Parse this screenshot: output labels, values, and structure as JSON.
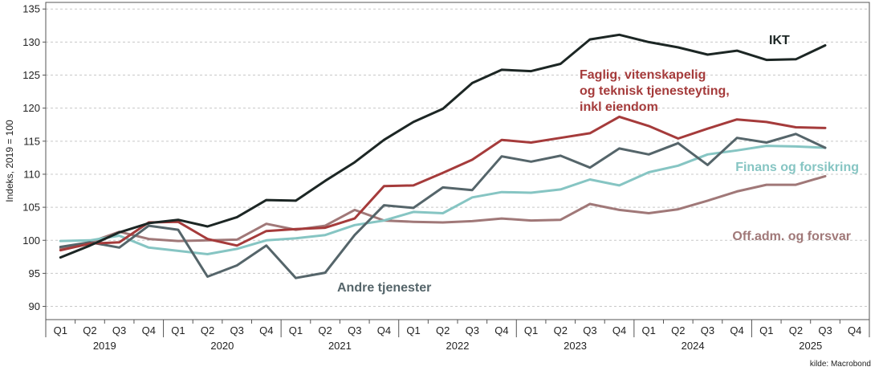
{
  "chart_data": {
    "type": "line",
    "ylabel": "Indeks, 2019 = 100",
    "ylim": [
      88,
      136
    ],
    "yticks": [
      90,
      95,
      100,
      105,
      110,
      115,
      120,
      125,
      130,
      135
    ],
    "grid": "horizontal dashed",
    "quarter_labels": [
      "Q1",
      "Q2",
      "Q3",
      "Q4",
      "Q1",
      "Q2",
      "Q3",
      "Q4",
      "Q1",
      "Q2",
      "Q3",
      "Q4",
      "Q1",
      "Q2",
      "Q3",
      "Q4",
      "Q1",
      "Q2",
      "Q3",
      "Q4",
      "Q1",
      "Q2",
      "Q3",
      "Q4",
      "Q1",
      "Q2",
      "Q3",
      "Q4"
    ],
    "years": [
      "2019",
      "2020",
      "2021",
      "2022",
      "2023",
      "2024",
      "2025"
    ],
    "source": "kilde: Macrobond",
    "series": [
      {
        "name": "Off.adm. og forsvar",
        "label_lines": [
          "Off.adm. og forsvar"
        ],
        "color": "#a07878",
        "values": [
          98.8,
          99.7,
          101.3,
          100.2,
          99.9,
          100.0,
          100.1,
          102.5,
          101.6,
          102.2,
          104.6,
          103.0,
          102.8,
          102.7,
          102.9,
          103.3,
          103.0,
          103.1,
          105.5,
          104.6,
          104.1,
          104.7,
          106.0,
          107.4,
          108.4,
          108.4,
          109.7
        ]
      },
      {
        "name": "Finans og forsikring",
        "label_lines": [
          "Finans og forsikring"
        ],
        "color": "#86c5c3",
        "values": [
          99.9,
          100.0,
          100.7,
          98.9,
          98.4,
          97.9,
          98.7,
          100.0,
          100.3,
          100.8,
          102.3,
          103.0,
          104.3,
          104.1,
          106.5,
          107.3,
          107.2,
          107.7,
          109.2,
          108.3,
          110.3,
          111.3,
          113.0,
          113.6,
          114.3,
          114.2,
          114.0
        ]
      },
      {
        "name": "Andre tjenester",
        "label_lines": [
          "Andre tjenester"
        ],
        "color": "#55656a",
        "values": [
          99.0,
          99.7,
          98.9,
          102.2,
          101.6,
          94.5,
          96.2,
          99.2,
          94.3,
          95.1,
          100.8,
          105.3,
          104.9,
          108.0,
          107.6,
          112.7,
          111.9,
          112.8,
          111.0,
          113.9,
          113.0,
          114.7,
          111.4,
          115.5,
          114.8,
          116.1,
          114.0
        ]
      },
      {
        "name": "Faglig, vitenskapelig og teknisk tjenesteyting, inkl eiendom",
        "label_lines": [
          "Faglig, vitenskapelig",
          "og teknisk tjenesteyting,",
          "inkl eiendom"
        ],
        "color": "#a53b3b",
        "values": [
          98.5,
          99.5,
          99.7,
          102.7,
          102.8,
          100.2,
          99.2,
          101.4,
          101.7,
          101.9,
          103.3,
          108.2,
          108.3,
          110.2,
          112.2,
          115.2,
          114.8,
          115.5,
          116.2,
          118.7,
          117.3,
          115.4,
          116.9,
          118.3,
          117.9,
          117.1,
          117.0
        ]
      },
      {
        "name": "IKT",
        "label_lines": [
          "IKT"
        ],
        "color": "#1c2624",
        "values": [
          97.4,
          99.2,
          101.2,
          102.6,
          103.1,
          102.1,
          103.5,
          106.1,
          106.0,
          109.0,
          111.8,
          115.2,
          117.9,
          119.9,
          123.8,
          125.8,
          125.6,
          126.7,
          130.4,
          131.1,
          130.0,
          129.2,
          128.1,
          128.7,
          127.3,
          127.4,
          129.5
        ]
      }
    ]
  }
}
